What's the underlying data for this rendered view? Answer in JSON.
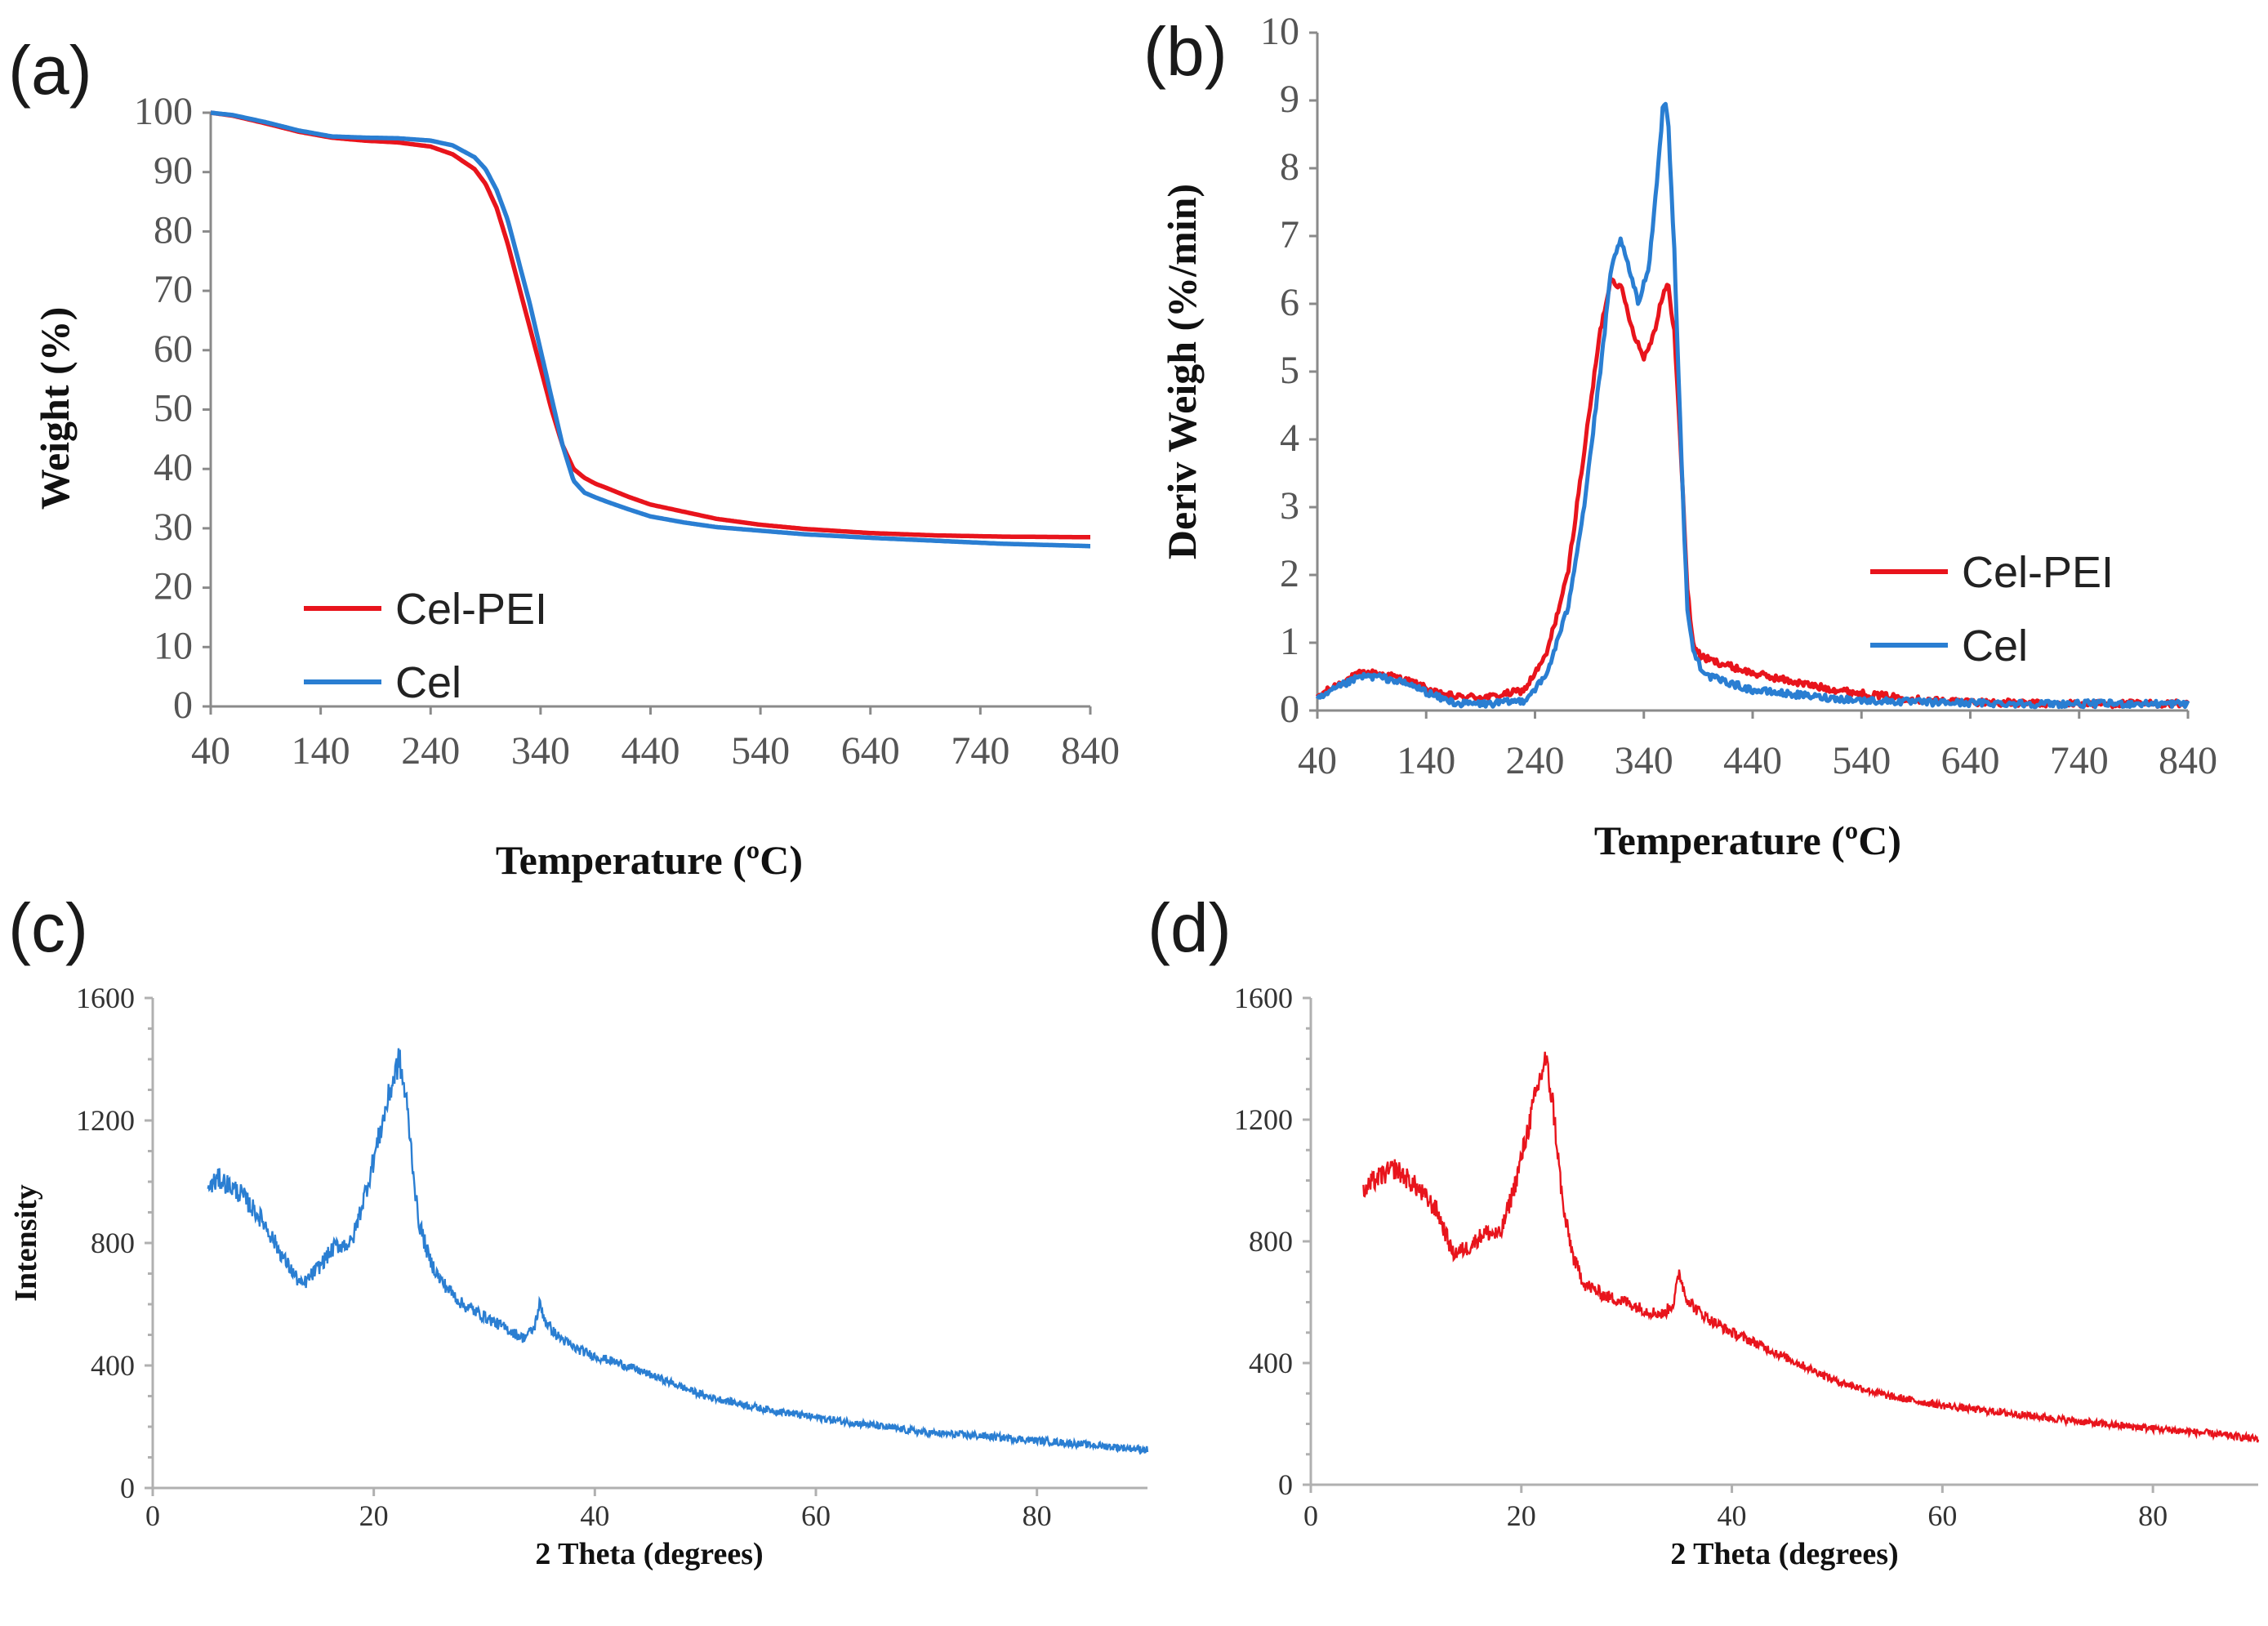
{
  "chart_data": [
    {
      "id": "a",
      "panel_label": "(a)",
      "type": "line",
      "xlabel": "Temperature (ºC)",
      "ylabel": "Weight (%)",
      "xlim": [
        40,
        840
      ],
      "ylim": [
        0,
        100
      ],
      "x_ticks": [
        40,
        140,
        240,
        340,
        440,
        540,
        640,
        740,
        840
      ],
      "y_ticks": [
        0,
        10,
        20,
        30,
        40,
        50,
        60,
        70,
        80,
        90,
        100
      ],
      "legend_position": "bottom-left",
      "series": [
        {
          "name": "Cel-PEI",
          "color": "#e8141c",
          "x": [
            40,
            60,
            90,
            120,
            150,
            180,
            210,
            240,
            260,
            280,
            290,
            300,
            310,
            320,
            330,
            340,
            350,
            360,
            370,
            380,
            390,
            400,
            420,
            440,
            470,
            500,
            540,
            580,
            640,
            700,
            760,
            840
          ],
          "y": [
            100,
            99.5,
            98.2,
            96.8,
            95.8,
            95.3,
            95,
            94.3,
            93,
            90.5,
            88,
            84,
            78,
            71,
            64,
            57,
            50,
            44,
            40,
            38.5,
            37.5,
            36.8,
            35.3,
            34,
            32.8,
            31.6,
            30.6,
            29.9,
            29.2,
            28.8,
            28.6,
            28.5
          ]
        },
        {
          "name": "Cel",
          "color": "#2a7ed2",
          "x": [
            40,
            60,
            90,
            120,
            150,
            180,
            210,
            240,
            260,
            280,
            290,
            300,
            310,
            320,
            330,
            340,
            350,
            360,
            370,
            380,
            390,
            400,
            420,
            440,
            470,
            500,
            540,
            580,
            640,
            700,
            760,
            840
          ],
          "y": [
            100,
            99.6,
            98.4,
            97,
            96,
            95.8,
            95.7,
            95.3,
            94.5,
            92.5,
            90.5,
            87,
            82,
            75,
            68,
            60,
            52,
            44,
            38,
            36,
            35.2,
            34.5,
            33.2,
            32,
            31,
            30.2,
            29.6,
            29,
            28.4,
            27.9,
            27.4,
            27
          ]
        }
      ]
    },
    {
      "id": "b",
      "panel_label": "(b)",
      "type": "line",
      "xlabel": "Temperature (ºC)",
      "ylabel": "Deriv Weigh (%/min)",
      "xlim": [
        40,
        840
      ],
      "ylim": [
        0,
        10
      ],
      "x_ticks": [
        40,
        140,
        240,
        340,
        440,
        540,
        640,
        740,
        840
      ],
      "y_ticks": [
        0,
        1,
        2,
        3,
        4,
        5,
        6,
        7,
        8,
        9,
        10
      ],
      "legend_position": "middle-right",
      "series": [
        {
          "name": "Cel-PEI",
          "color": "#e8141c",
          "x": [
            40,
            60,
            80,
            95,
            110,
            130,
            150,
            170,
            200,
            230,
            250,
            270,
            285,
            300,
            310,
            320,
            330,
            340,
            350,
            355,
            362,
            368,
            375,
            380,
            385,
            392,
            400,
            420,
            440,
            470,
            500,
            540,
            600,
            700,
            840
          ],
          "y": [
            0.2,
            0.4,
            0.55,
            0.55,
            0.5,
            0.4,
            0.25,
            0.2,
            0.2,
            0.3,
            0.8,
            2.0,
            3.8,
            5.6,
            6.4,
            6.2,
            5.6,
            5.2,
            5.6,
            6.0,
            6.3,
            5.6,
            3.5,
            1.8,
            1.0,
            0.8,
            0.75,
            0.65,
            0.55,
            0.45,
            0.35,
            0.25,
            0.15,
            0.1,
            0.1
          ]
        },
        {
          "name": "Cel",
          "color": "#2a7ed2",
          "x": [
            40,
            60,
            80,
            95,
            110,
            130,
            150,
            170,
            200,
            230,
            250,
            270,
            285,
            300,
            310,
            318,
            325,
            335,
            345,
            352,
            358,
            362,
            368,
            375,
            380,
            385,
            392,
            400,
            420,
            440,
            470,
            500,
            540,
            600,
            700,
            840
          ],
          "y": [
            0.15,
            0.35,
            0.5,
            0.5,
            0.45,
            0.35,
            0.2,
            0.1,
            0.1,
            0.15,
            0.5,
            1.5,
            3.0,
            5.0,
            6.5,
            6.95,
            6.6,
            6.0,
            6.6,
            7.8,
            9.0,
            8.8,
            6.8,
            3.5,
            1.5,
            0.9,
            0.65,
            0.5,
            0.4,
            0.3,
            0.25,
            0.2,
            0.15,
            0.12,
            0.1,
            0.1
          ]
        }
      ]
    },
    {
      "id": "c",
      "panel_label": "(c)",
      "type": "line",
      "xlabel": "2 Theta (degrees)",
      "ylabel": "Intensity",
      "xlim": [
        0,
        90
      ],
      "ylim": [
        0,
        1600
      ],
      "x_ticks": [
        0,
        20,
        40,
        60,
        80
      ],
      "y_ticks": [
        0,
        400,
        800,
        1200,
        1600
      ],
      "series": [
        {
          "name": "Cel",
          "color": "#2a7ed2",
          "x": [
            5,
            6,
            8,
            10,
            12,
            13.5,
            15,
            16.5,
            18,
            19.5,
            20.5,
            21.5,
            22.3,
            23,
            24,
            25,
            26,
            28,
            30,
            32,
            33.5,
            34.5,
            35,
            35.6,
            36.5,
            38,
            40,
            42,
            45,
            50,
            55,
            60,
            65,
            70,
            75,
            80,
            85,
            90
          ],
          "y": [
            980,
            1010,
            960,
            870,
            740,
            660,
            720,
            790,
            800,
            1000,
            1150,
            1300,
            1400,
            1250,
            880,
            750,
            680,
            600,
            560,
            520,
            490,
            520,
            600,
            540,
            500,
            460,
            430,
            410,
            370,
            300,
            260,
            230,
            205,
            180,
            170,
            155,
            140,
            125
          ]
        }
      ]
    },
    {
      "id": "d",
      "panel_label": "(d)",
      "type": "line",
      "xlabel": "2 Theta (degrees)",
      "ylabel": "",
      "xlim": [
        0,
        90
      ],
      "ylim": [
        0,
        1600
      ],
      "x_ticks": [
        0,
        20,
        40,
        60,
        80
      ],
      "y_ticks": [
        0,
        400,
        800,
        1200,
        1600
      ],
      "series": [
        {
          "name": "Cel-PEI",
          "color": "#e8141c",
          "x": [
            5,
            6,
            8,
            10,
            12,
            13.5,
            15,
            16.5,
            18,
            19.5,
            20.5,
            21.5,
            22.3,
            23,
            24,
            25,
            26,
            28,
            30,
            32,
            33.5,
            34.5,
            35,
            35.6,
            36.5,
            38,
            40,
            42,
            45,
            50,
            55,
            60,
            65,
            70,
            75,
            80,
            85,
            90
          ],
          "y": [
            960,
            1000,
            1040,
            980,
            900,
            760,
            780,
            830,
            820,
            1000,
            1150,
            1300,
            1400,
            1250,
            900,
            740,
            660,
            620,
            600,
            570,
            560,
            600,
            700,
            620,
            580,
            540,
            500,
            470,
            420,
            340,
            290,
            260,
            240,
            220,
            200,
            185,
            170,
            150
          ]
        }
      ]
    }
  ]
}
